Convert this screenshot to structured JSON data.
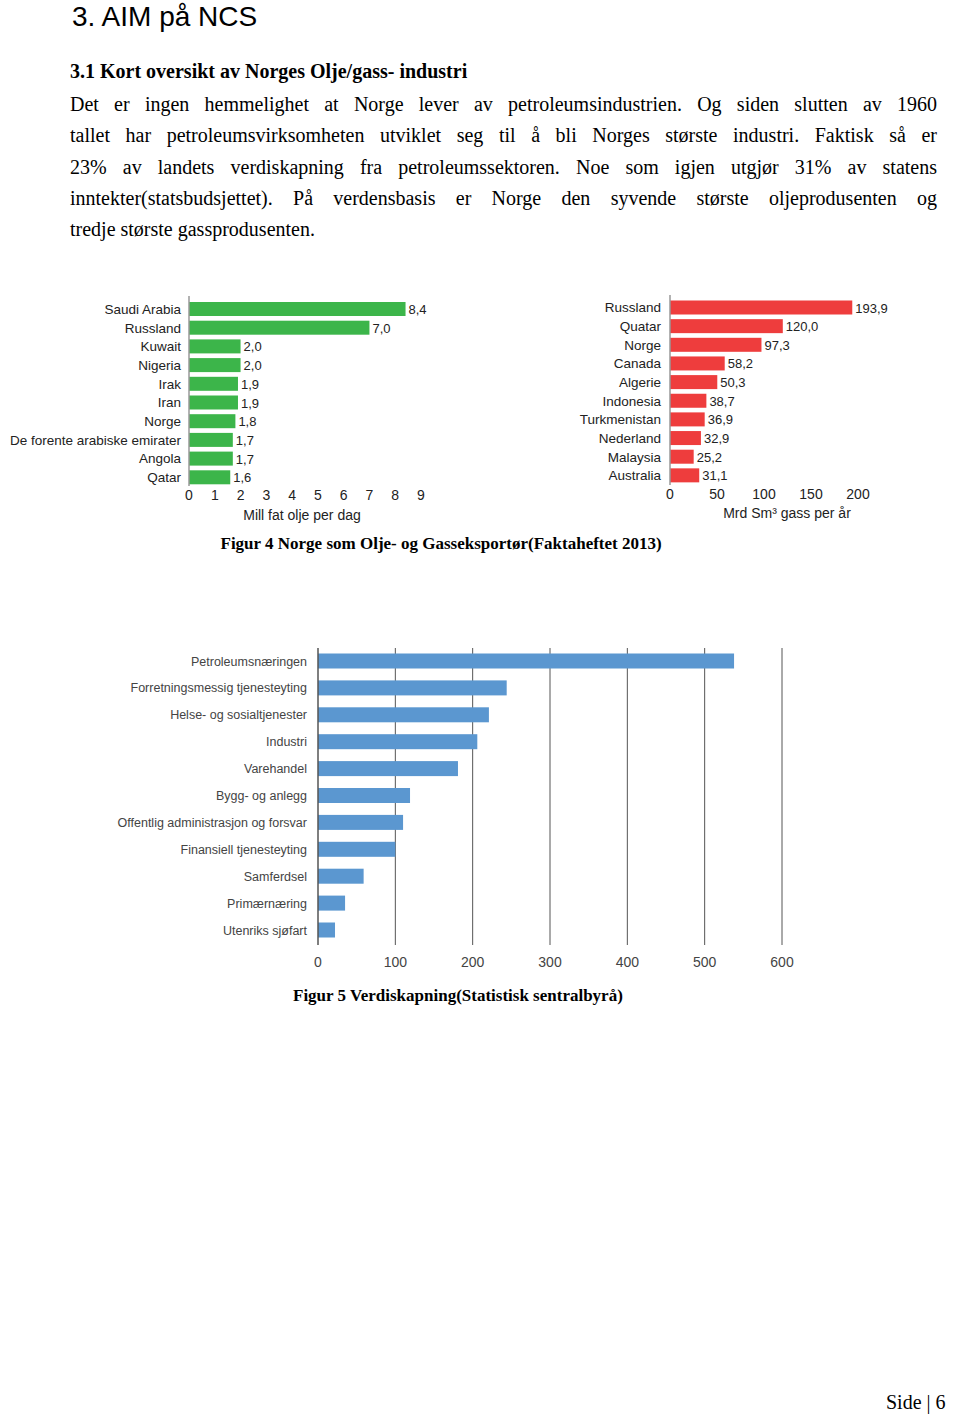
{
  "heading": "3. AIM på NCS",
  "subheading": "3.1 Kort oversikt av Norges Olje/gass- industri",
  "paragraph_lines": [
    "Det er ingen hemmelighet at Norge lever av petroleumsindustrien. Og siden slutten av 1960",
    "tallet har petroleumsvirksomheten utviklet seg til å bli Norges største industri. Faktisk så er",
    "23% av landets verdiskapning fra petroleumssektoren. Noe som igjen utgjør 31% av statens",
    "inntekter(statsbudsjettet). På verdensbasis er Norge den syvende største oljeprodusenten og",
    "tredje største gassprodusenten."
  ],
  "chart_data": [
    {
      "type": "bar",
      "orientation": "horizontal",
      "xlabel": "Mill fat olje per dag",
      "categories": [
        "Saudi Arabia",
        "Russland",
        "Kuwait",
        "Nigeria",
        "Irak",
        "Iran",
        "Norge",
        "De forente arabiske emirater",
        "Angola",
        "Qatar"
      ],
      "values": [
        8.4,
        7.0,
        2.0,
        2.0,
        1.9,
        1.9,
        1.8,
        1.7,
        1.7,
        1.6
      ],
      "value_labels": [
        "8,4",
        "7,0",
        "2,0",
        "2,0",
        "1,9",
        "1,9",
        "1,8",
        "1,7",
        "1,7",
        "1,6"
      ],
      "color": "#3cb54a",
      "xlim": [
        0,
        9
      ],
      "xticks": [
        0,
        1,
        2,
        3,
        4,
        5,
        6,
        7,
        8,
        9
      ],
      "data_labels": true,
      "grid": false
    },
    {
      "type": "bar",
      "orientation": "horizontal",
      "xlabel": "Mrd Sm³ gass per år",
      "categories": [
        "Russland",
        "Quatar",
        "Norge",
        "Canada",
        "Algerie",
        "Indonesia",
        "Turkmenistan",
        "Nederland",
        "Malaysia",
        "Australia"
      ],
      "values": [
        193.9,
        120.0,
        97.3,
        58.2,
        50.3,
        38.7,
        36.9,
        32.9,
        25.2,
        31.1
      ],
      "value_labels": [
        "193,9",
        "120,0",
        "97,3",
        "58,2",
        "50,3",
        "38,7",
        "36,9",
        "32,9",
        "25,2",
        "31,1"
      ],
      "color": "#ee3d3d",
      "xlim": [
        0,
        200
      ],
      "xticks": [
        0,
        50,
        100,
        150,
        200
      ],
      "data_labels": true,
      "grid": false
    },
    {
      "type": "bar",
      "orientation": "horizontal",
      "categories": [
        "Petroleumsnæringen",
        "Forretningsmessig tjenesteyting",
        "Helse- og sosialtjenester",
        "Industri",
        "Varehandel",
        "Bygg- og anlegg",
        "Offentlig administrasjon og forsvar",
        "Finansiell tjenesteyting",
        "Samferdsel",
        "Primærnæring",
        "Utenriks sjøfart"
      ],
      "values": [
        538,
        244,
        221,
        206,
        181,
        119,
        110,
        100,
        59,
        35,
        22
      ],
      "color": "#5b97d0",
      "xlim": [
        0,
        600
      ],
      "xticks": [
        0,
        100,
        200,
        300,
        400,
        500,
        600
      ],
      "data_labels": false,
      "grid": true
    }
  ],
  "captions": [
    "Figur 4 Norge som Olje- og Gasseksportør(Faktaheftet 2013)",
    "Figur 5 Verdiskapning(Statistisk sentralbyrå)"
  ],
  "footer": "Side | 6"
}
